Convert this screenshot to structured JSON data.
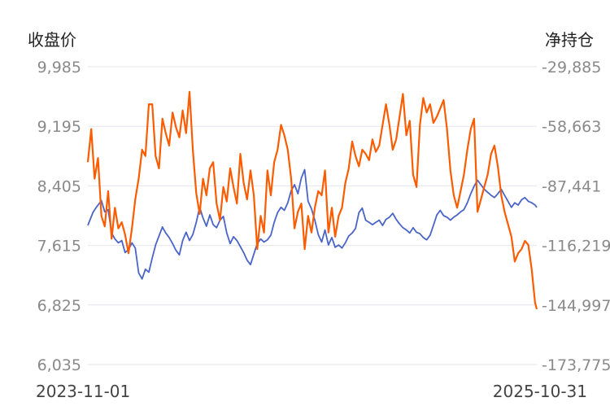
{
  "chart_data": {
    "type": "line",
    "left_axis_title": "收盘价",
    "right_axis_title": "净持仓",
    "left_ticks": [
      "9,985",
      "9,195",
      "8,405",
      "7,615",
      "6,825",
      "6,035"
    ],
    "right_ticks": [
      "-29,885",
      "-58,663",
      "-87,441",
      "-116,219",
      "-144,997",
      "-173,775"
    ],
    "left_ylim": [
      6035,
      9985
    ],
    "right_ylim": [
      -173775,
      -29885
    ],
    "x_start_label": "2023-11-01",
    "x_end_label": "2025-10-31",
    "grid": true,
    "series": [
      {
        "axis": "left",
        "color": "#4a64c8",
        "points": [
          [
            0,
            7880
          ],
          [
            6,
            8050
          ],
          [
            10,
            8120
          ],
          [
            16,
            8210
          ],
          [
            20,
            8060
          ],
          [
            24,
            8090
          ],
          [
            28,
            7780
          ],
          [
            32,
            7700
          ],
          [
            36,
            7650
          ],
          [
            40,
            7680
          ],
          [
            44,
            7520
          ],
          [
            48,
            7560
          ],
          [
            52,
            7650
          ],
          [
            56,
            7580
          ],
          [
            60,
            7250
          ],
          [
            64,
            7170
          ],
          [
            68,
            7300
          ],
          [
            72,
            7260
          ],
          [
            76,
            7450
          ],
          [
            80,
            7620
          ],
          [
            84,
            7740
          ],
          [
            88,
            7860
          ],
          [
            92,
            7780
          ],
          [
            96,
            7720
          ],
          [
            100,
            7640
          ],
          [
            104,
            7550
          ],
          [
            108,
            7490
          ],
          [
            112,
            7680
          ],
          [
            116,
            7790
          ],
          [
            120,
            7680
          ],
          [
            124,
            7760
          ],
          [
            128,
            7920
          ],
          [
            132,
            8120
          ],
          [
            136,
            7980
          ],
          [
            140,
            7870
          ],
          [
            144,
            8020
          ],
          [
            148,
            7890
          ],
          [
            152,
            7850
          ],
          [
            156,
            7950
          ],
          [
            160,
            8000
          ],
          [
            164,
            7780
          ],
          [
            168,
            7640
          ],
          [
            172,
            7730
          ],
          [
            176,
            7680
          ],
          [
            180,
            7600
          ],
          [
            184,
            7520
          ],
          [
            188,
            7420
          ],
          [
            192,
            7360
          ],
          [
            196,
            7500
          ],
          [
            200,
            7640
          ],
          [
            204,
            7700
          ],
          [
            208,
            7660
          ],
          [
            212,
            7690
          ],
          [
            216,
            7750
          ],
          [
            220,
            7920
          ],
          [
            224,
            8050
          ],
          [
            228,
            8120
          ],
          [
            232,
            8080
          ],
          [
            236,
            8180
          ],
          [
            240,
            8340
          ],
          [
            244,
            8420
          ],
          [
            248,
            8300
          ],
          [
            252,
            8510
          ],
          [
            256,
            8620
          ],
          [
            260,
            8200
          ],
          [
            264,
            8100
          ],
          [
            268,
            7950
          ],
          [
            272,
            7760
          ],
          [
            276,
            7660
          ],
          [
            280,
            7820
          ],
          [
            284,
            7620
          ],
          [
            288,
            7720
          ],
          [
            292,
            7590
          ],
          [
            296,
            7620
          ],
          [
            300,
            7580
          ],
          [
            304,
            7650
          ],
          [
            308,
            7740
          ],
          [
            312,
            7780
          ],
          [
            316,
            7840
          ],
          [
            320,
            8050
          ],
          [
            324,
            8110
          ],
          [
            328,
            7950
          ],
          [
            332,
            7920
          ],
          [
            336,
            7890
          ],
          [
            340,
            7920
          ],
          [
            344,
            7950
          ],
          [
            348,
            7880
          ],
          [
            352,
            7960
          ],
          [
            356,
            7990
          ],
          [
            360,
            8040
          ],
          [
            364,
            7960
          ],
          [
            368,
            7900
          ],
          [
            372,
            7850
          ],
          [
            376,
            7820
          ],
          [
            380,
            7780
          ],
          [
            384,
            7850
          ],
          [
            388,
            7790
          ],
          [
            392,
            7770
          ],
          [
            396,
            7720
          ],
          [
            400,
            7690
          ],
          [
            404,
            7750
          ],
          [
            408,
            7880
          ],
          [
            412,
            8020
          ],
          [
            416,
            8080
          ],
          [
            420,
            8010
          ],
          [
            424,
            7990
          ],
          [
            428,
            7950
          ],
          [
            432,
            7990
          ],
          [
            436,
            8020
          ],
          [
            440,
            8060
          ],
          [
            444,
            8090
          ],
          [
            448,
            8180
          ],
          [
            452,
            8300
          ],
          [
            456,
            8400
          ],
          [
            460,
            8480
          ],
          [
            464,
            8420
          ],
          [
            468,
            8360
          ],
          [
            472,
            8320
          ],
          [
            476,
            8280
          ],
          [
            480,
            8250
          ],
          [
            484,
            8300
          ],
          [
            488,
            8360
          ],
          [
            492,
            8280
          ],
          [
            496,
            8200
          ],
          [
            500,
            8120
          ],
          [
            504,
            8180
          ],
          [
            508,
            8150
          ],
          [
            512,
            8220
          ],
          [
            516,
            8250
          ],
          [
            520,
            8200
          ],
          [
            524,
            8180
          ],
          [
            528,
            8150
          ],
          [
            530,
            8120
          ]
        ]
      },
      {
        "axis": "right",
        "color": "#fc5c00",
        "points": [
          [
            0,
            -76000
          ],
          [
            4,
            -60000
          ],
          [
            8,
            -84000
          ],
          [
            12,
            -74000
          ],
          [
            16,
            -102000
          ],
          [
            20,
            -107000
          ],
          [
            24,
            -90000
          ],
          [
            28,
            -113000
          ],
          [
            32,
            -98000
          ],
          [
            36,
            -108000
          ],
          [
            40,
            -105000
          ],
          [
            44,
            -111000
          ],
          [
            48,
            -120000
          ],
          [
            52,
            -108000
          ],
          [
            56,
            -94000
          ],
          [
            60,
            -84000
          ],
          [
            64,
            -70000
          ],
          [
            68,
            -73000
          ],
          [
            72,
            -48000
          ],
          [
            76,
            -48000
          ],
          [
            80,
            -73000
          ],
          [
            84,
            -79000
          ],
          [
            88,
            -55000
          ],
          [
            92,
            -62000
          ],
          [
            96,
            -68000
          ],
          [
            100,
            -52000
          ],
          [
            104,
            -59000
          ],
          [
            108,
            -64000
          ],
          [
            112,
            -51000
          ],
          [
            116,
            -62000
          ],
          [
            120,
            -42000
          ],
          [
            124,
            -70000
          ],
          [
            128,
            -91000
          ],
          [
            132,
            -101000
          ],
          [
            136,
            -84000
          ],
          [
            140,
            -92000
          ],
          [
            144,
            -79000
          ],
          [
            148,
            -76000
          ],
          [
            152,
            -96000
          ],
          [
            156,
            -104000
          ],
          [
            160,
            -88000
          ],
          [
            164,
            -95000
          ],
          [
            168,
            -79000
          ],
          [
            172,
            -88000
          ],
          [
            176,
            -96000
          ],
          [
            180,
            -72000
          ],
          [
            184,
            -86000
          ],
          [
            188,
            -94000
          ],
          [
            192,
            -80000
          ],
          [
            196,
            -92000
          ],
          [
            200,
            -118000
          ],
          [
            204,
            -102000
          ],
          [
            208,
            -110000
          ],
          [
            212,
            -80000
          ],
          [
            216,
            -92000
          ],
          [
            220,
            -76000
          ],
          [
            224,
            -70000
          ],
          [
            228,
            -58000
          ],
          [
            232,
            -63000
          ],
          [
            236,
            -70000
          ],
          [
            240,
            -84000
          ],
          [
            244,
            -108000
          ],
          [
            248,
            -100000
          ],
          [
            252,
            -96000
          ],
          [
            256,
            -118000
          ],
          [
            260,
            -102000
          ],
          [
            264,
            -110000
          ],
          [
            268,
            -98000
          ],
          [
            272,
            -90000
          ],
          [
            276,
            -92000
          ],
          [
            280,
            -80000
          ],
          [
            284,
            -110000
          ],
          [
            288,
            -98000
          ],
          [
            292,
            -112000
          ],
          [
            296,
            -102000
          ],
          [
            300,
            -98000
          ],
          [
            304,
            -86000
          ],
          [
            308,
            -79000
          ],
          [
            312,
            -66000
          ],
          [
            316,
            -73000
          ],
          [
            320,
            -78000
          ],
          [
            324,
            -70000
          ],
          [
            328,
            -72000
          ],
          [
            332,
            -75000
          ],
          [
            336,
            -65000
          ],
          [
            340,
            -71000
          ],
          [
            344,
            -68000
          ],
          [
            348,
            -58000
          ],
          [
            352,
            -48000
          ],
          [
            356,
            -58000
          ],
          [
            360,
            -70000
          ],
          [
            364,
            -65000
          ],
          [
            368,
            -54000
          ],
          [
            372,
            -43000
          ],
          [
            376,
            -63000
          ],
          [
            380,
            -56000
          ],
          [
            384,
            -82000
          ],
          [
            388,
            -88000
          ],
          [
            392,
            -58000
          ],
          [
            396,
            -45000
          ],
          [
            400,
            -52000
          ],
          [
            404,
            -48000
          ],
          [
            408,
            -57000
          ],
          [
            412,
            -54000
          ],
          [
            416,
            -50000
          ],
          [
            420,
            -46000
          ],
          [
            424,
            -60000
          ],
          [
            428,
            -80000
          ],
          [
            432,
            -92000
          ],
          [
            436,
            -98000
          ],
          [
            440,
            -90000
          ],
          [
            444,
            -82000
          ],
          [
            448,
            -70000
          ],
          [
            452,
            -60000
          ],
          [
            456,
            -55000
          ],
          [
            460,
            -100000
          ],
          [
            464,
            -94000
          ],
          [
            468,
            -88000
          ],
          [
            472,
            -82000
          ],
          [
            476,
            -72000
          ],
          [
            480,
            -68000
          ],
          [
            484,
            -78000
          ],
          [
            488,
            -92000
          ],
          [
            492,
            -100000
          ],
          [
            496,
            -106000
          ],
          [
            500,
            -112000
          ],
          [
            504,
            -124000
          ],
          [
            508,
            -120000
          ],
          [
            512,
            -118000
          ],
          [
            516,
            -114000
          ],
          [
            520,
            -116000
          ],
          [
            524,
            -128000
          ],
          [
            528,
            -144000
          ],
          [
            530,
            -147000
          ]
        ]
      }
    ]
  }
}
